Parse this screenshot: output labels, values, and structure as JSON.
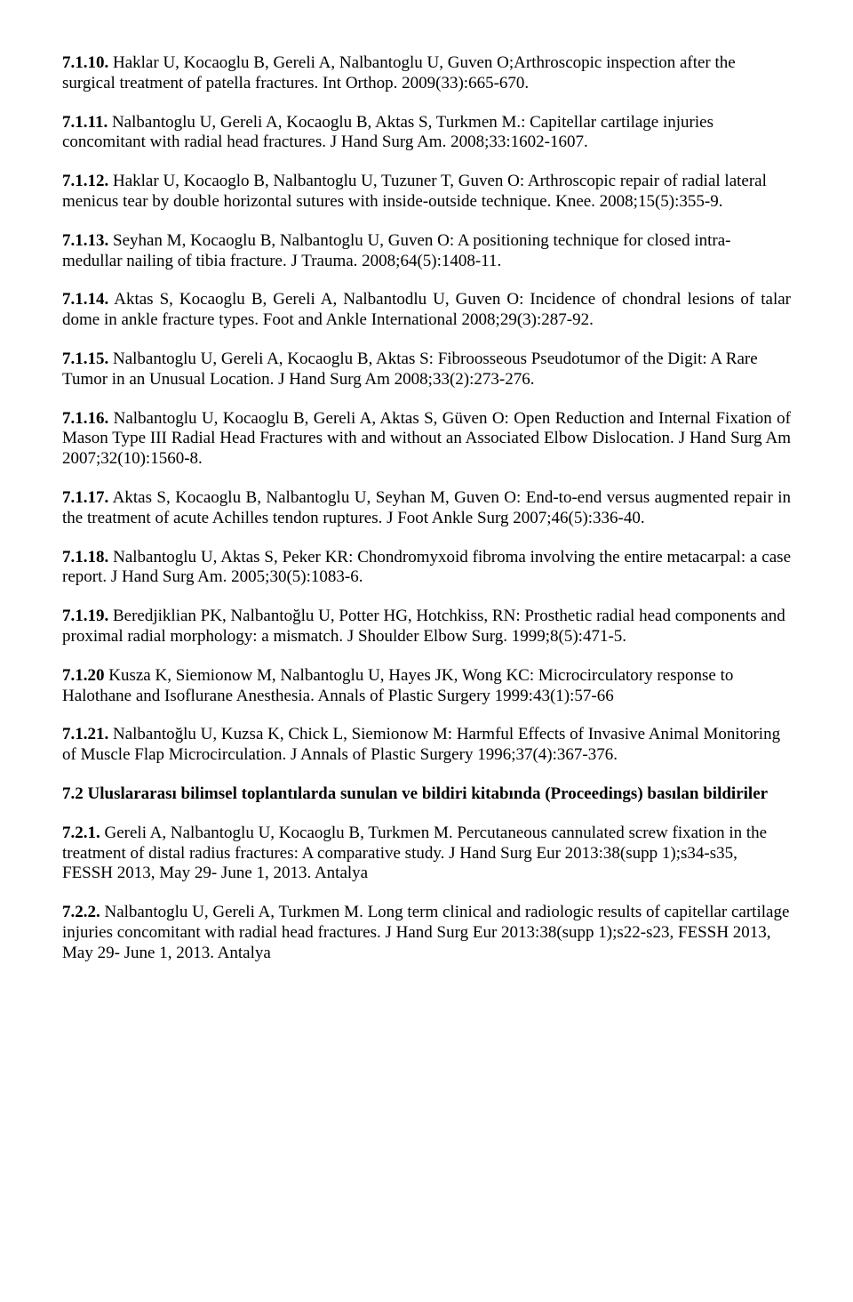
{
  "entries": [
    {
      "num": "7.1.10.",
      "text": "Haklar U, Kocaoglu B, Gereli A, Nalbantoglu U, Guven O;Arthroscopic inspection after the surgical treatment of patella fractures. Int Orthop. 2009(33):665-670.",
      "align": "left"
    },
    {
      "num": "7.1.11.",
      "text": "Nalbantoglu U, Gereli A, Kocaoglu B, Aktas S, Turkmen M.: Capitellar cartilage injuries concomitant with radial head fractures. J Hand Surg Am. 2008;33:1602-1607.",
      "align": "left"
    },
    {
      "num": "7.1.12.",
      "text": "Haklar U, Kocaoglo B, Nalbantoglu U, Tuzuner T, Guven O: Arthroscopic repair of radial lateral menicus tear by double horizontal sutures with inside-outside technique. Knee. 2008;15(5):355-9.",
      "align": "left"
    },
    {
      "num": "7.1.13.",
      "text": "Seyhan M, Kocaoglu B, Nalbantoglu U, Guven O: A positioning technique for closed intra-medullar nailing of tibia fracture. J Trauma. 2008;64(5):1408-11.",
      "align": "left"
    },
    {
      "num": "7.1.14.",
      "text": "Aktas S, Kocaoglu B, Gereli A, Nalbantodlu U, Guven O: Incidence of chondral lesions of talar dome in ankle fracture types. Foot and Ankle International 2008;29(3):287-92.",
      "align": "justify"
    },
    {
      "num": "7.1.15.",
      "text": "Nalbantoglu U, Gereli A, Kocaoglu B, Aktas S:  Fibroosseous Pseudotumor of the Digit: A Rare Tumor in an Unusual Location. J Hand Surg Am 2008;33(2):273-276.",
      "align": "left"
    },
    {
      "num": "7.1.16.",
      "text": "Nalbantoglu U, Kocaoglu B, Gereli A, Aktas S, Güven O: Open Reduction and Internal Fixation of Mason Type III Radial Head Fractures with and without an Associated Elbow Dislocation. J Hand Surg Am 2007;32(10):1560-8.",
      "align": "justify"
    },
    {
      "num": "7.1.17.",
      "text": "Aktas S, Kocaoglu B, Nalbantoglu U, Seyhan M, Guven O: End-to-end versus augmented repair in the treatment of acute Achilles tendon ruptures. J Foot Ankle Surg 2007;46(5):336-40.",
      "align": "justify"
    },
    {
      "num": "7.1.18.",
      "text": "Nalbantoglu U, Aktas S, Peker KR: Chondromyxoid fibroma involving the entire metacarpal: a case report. J Hand Surg Am. 2005;30(5):1083-6.",
      "align": "justify"
    },
    {
      "num": "7.1.19.",
      "text": "Beredjiklian PK, Nalbantoğlu U, Potter HG, Hotchkiss, RN: Prosthetic radial head components and proximal radial morphology: a mismatch. J Shoulder Elbow Surg. 1999;8(5):471-5.",
      "align": "left"
    },
    {
      "num": "7.1.20",
      "text": "Kusza K,  Siemionow M, Nalbantoglu U, Hayes JK,  Wong KC: Microcirculatory response to Halothane and Isoflurane Anesthesia. Annals of Plastic Surgery 1999:43(1):57-66",
      "align": "left"
    },
    {
      "num": "7.1.21.",
      "text": "Nalbantoğlu U, Kuzsa K, Chick L, Siemionow M: Harmful Effects of Invasive Animal Monitoring of Muscle Flap Microcirculation. J Annals of Plastic Surgery 1996;37(4):367-376.",
      "align": "left"
    }
  ],
  "section72_title": "7.2 Uluslararası bilimsel toplantılarda sunulan ve bildiri kitabında (Proceedings) basılan bildiriler",
  "proceedings": [
    {
      "num": "7.2.1.",
      "text": "Gereli A, Nalbantoglu U, Kocaoglu B, Turkmen M. Percutaneous cannulated screw fixation in the treatment of distal radius fractures: A comparative study. J Hand Surg Eur 2013:38(supp 1);s34-s35, FESSH 2013, May 29- June 1, 2013. Antalya",
      "align": "left"
    },
    {
      "num": "7.2.2.",
      "text": "Nalbantoglu U, Gereli A, Turkmen M. Long term clinical and radiologic results of capitellar cartilage injuries concomitant with radial head fractures. J Hand Surg Eur 2013:38(supp 1);s22-s23, FESSH 2013, May 29- June 1, 2013. Antalya",
      "align": "left"
    }
  ]
}
